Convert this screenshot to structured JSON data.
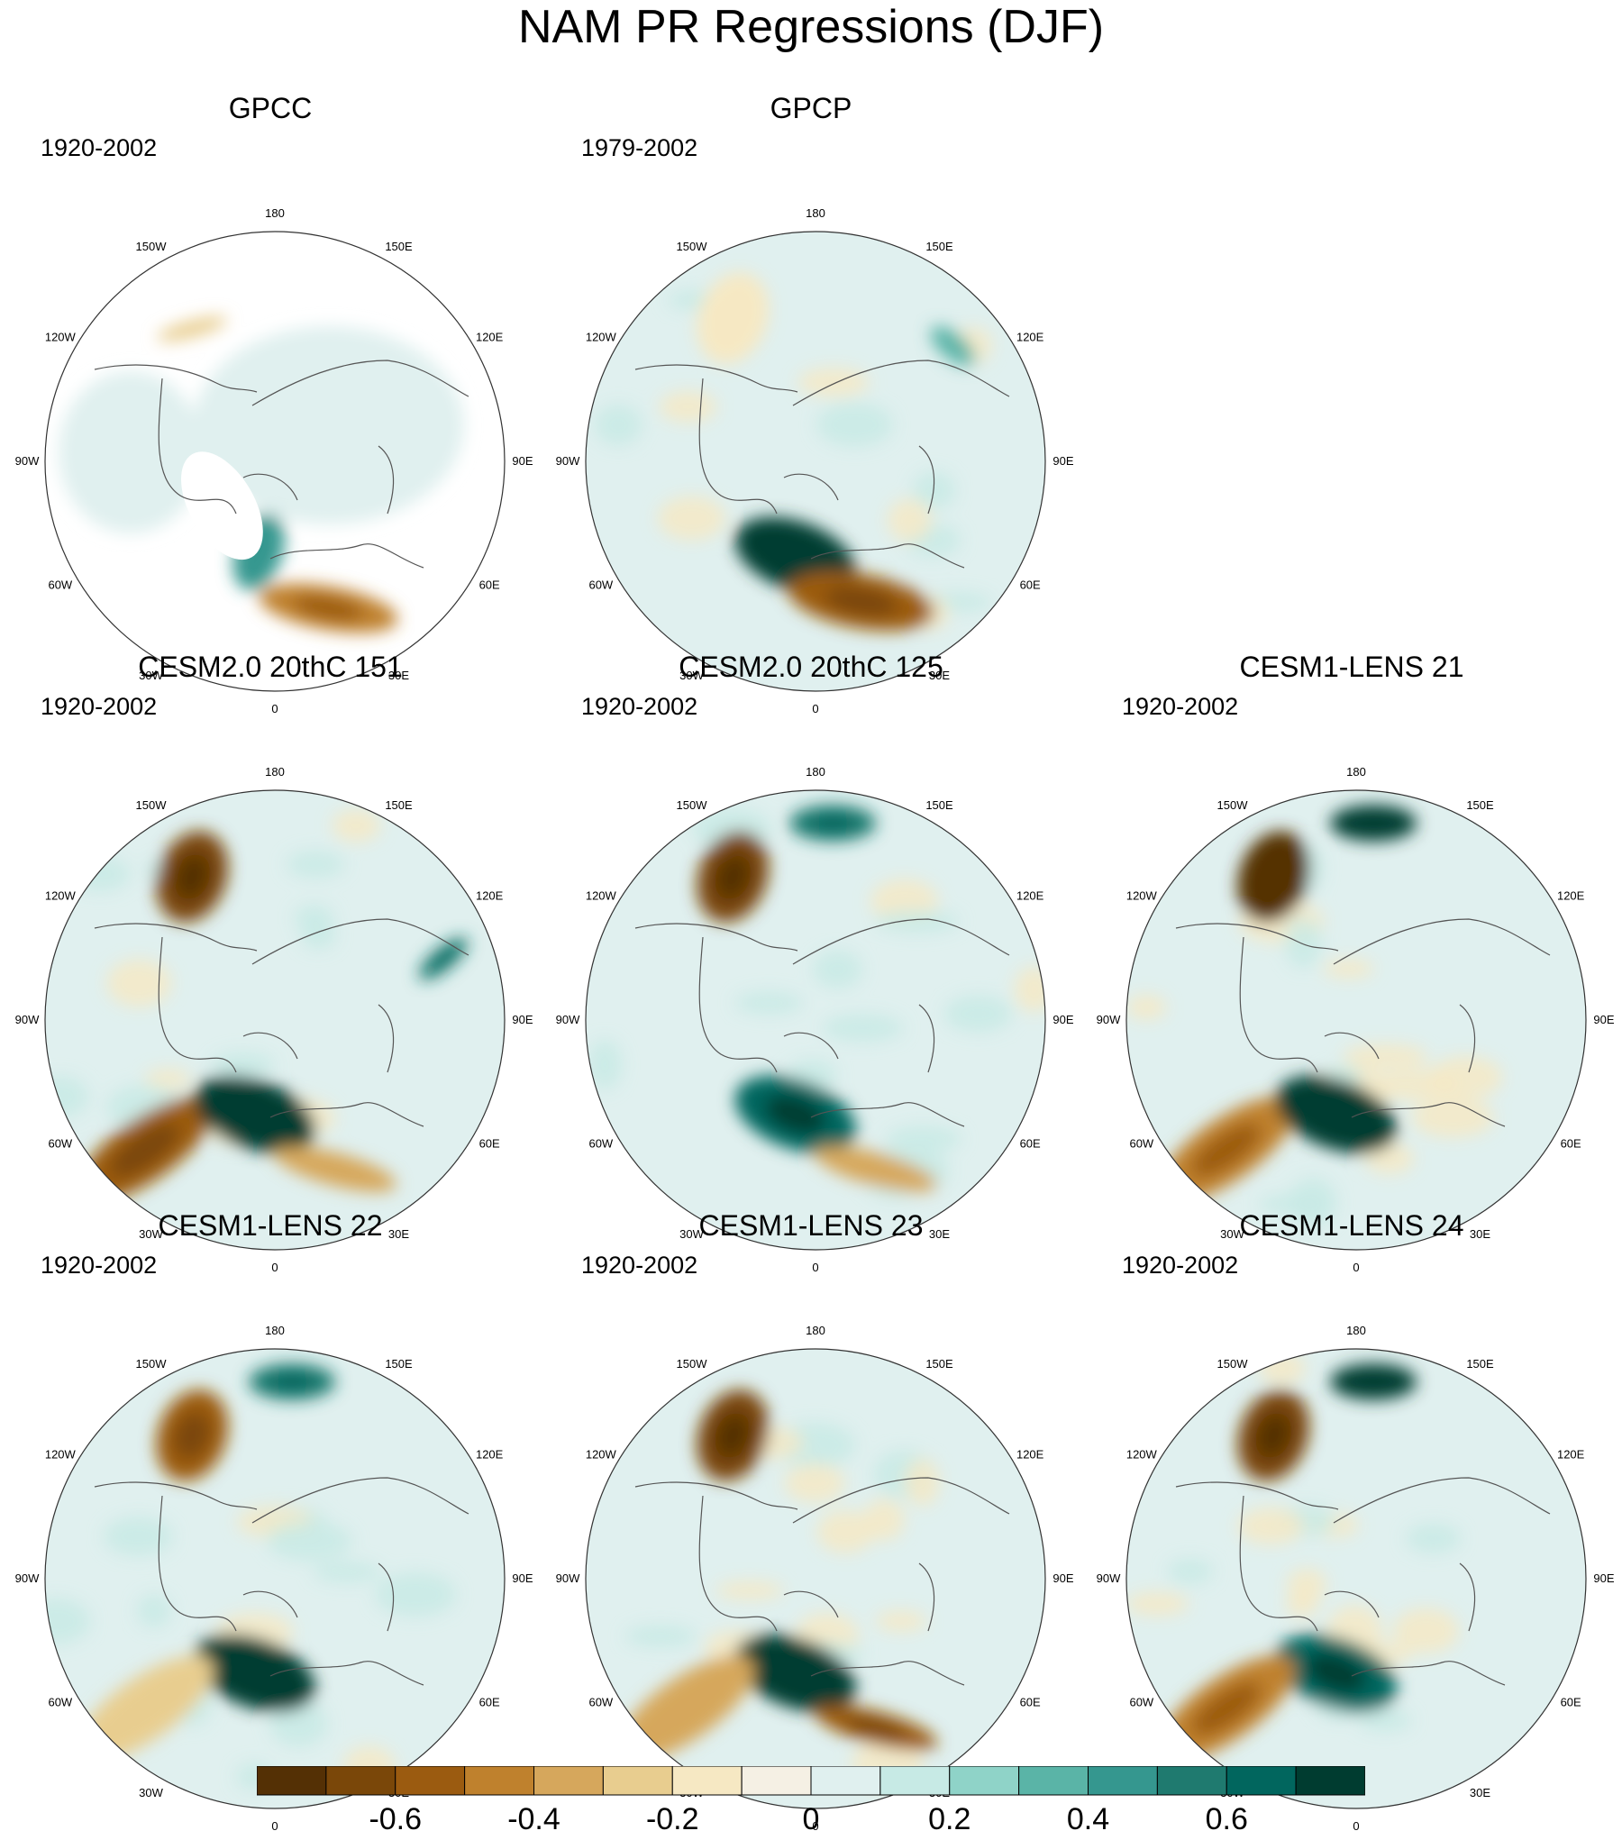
{
  "figure_title": "NAM PR Regressions (DJF)",
  "lon_labels": [
    "180",
    "150E",
    "120E",
    "90E",
    "60E",
    "30E",
    "0",
    "30W",
    "60W",
    "90W",
    "120W",
    "150W"
  ],
  "panels": [
    {
      "title": "GPCC",
      "period": "1920-2002",
      "data_coverage": "land-only",
      "features": [
        {
          "region": "Mediterranean / Iberia",
          "value": -0.5
        },
        {
          "region": "NW Europe",
          "value": 0.4
        },
        {
          "region": "Alaska south coast",
          "value": -0.3
        },
        {
          "region": "Greenland",
          "value": null
        }
      ]
    },
    {
      "title": "GPCP",
      "period": "1979-2002",
      "data_coverage": "global",
      "features": [
        {
          "region": "N Atlantic / N Europe",
          "value": 0.7
        },
        {
          "region": "Mediterranean / N Africa",
          "value": -0.6
        },
        {
          "region": "NE Pacific",
          "value": -0.2
        },
        {
          "region": "NW Pacific",
          "value": 0.3
        }
      ]
    },
    {
      "title": "CESM2.0 20thC 151",
      "period": "1920-2002",
      "data_coverage": "global",
      "features": [
        {
          "region": "NE Pacific",
          "value": -0.7
        },
        {
          "region": "Subtropical N Atlantic",
          "value": -0.6
        },
        {
          "region": "N Atlantic / N Europe",
          "value": 0.7
        },
        {
          "region": "Mediterranean",
          "value": -0.4
        },
        {
          "region": "E Asia",
          "value": 0.5
        }
      ]
    },
    {
      "title": "CESM2.0 20thC 125",
      "period": "1920-2002",
      "data_coverage": "global",
      "features": [
        {
          "region": "NE Pacific",
          "value": -0.7
        },
        {
          "region": "N Pacific (Aleutians)",
          "value": 0.5
        },
        {
          "region": "N Atlantic / N Europe",
          "value": 0.6
        },
        {
          "region": "Mediterranean",
          "value": -0.4
        }
      ]
    },
    {
      "title": "CESM1-LENS 21",
      "period": "1920-2002",
      "data_coverage": "global",
      "features": [
        {
          "region": "NE Pacific",
          "value": -0.8
        },
        {
          "region": "N Pacific (Aleutians)",
          "value": 0.7
        },
        {
          "region": "Subtropical N Atlantic",
          "value": -0.5
        },
        {
          "region": "N Atlantic / N Europe",
          "value": 0.7
        }
      ]
    },
    {
      "title": "CESM1-LENS 22",
      "period": "1920-2002",
      "data_coverage": "global",
      "features": [
        {
          "region": "NE Pacific",
          "value": -0.6
        },
        {
          "region": "N Pacific (Aleutians)",
          "value": 0.5
        },
        {
          "region": "N Atlantic / N Europe",
          "value": 0.7
        },
        {
          "region": "Subtropical N Atlantic",
          "value": -0.3
        }
      ]
    },
    {
      "title": "CESM1-LENS 23",
      "period": "1920-2002",
      "data_coverage": "global",
      "features": [
        {
          "region": "NE Pacific",
          "value": -0.7
        },
        {
          "region": "N Atlantic / N Europe",
          "value": 0.7
        },
        {
          "region": "Mediterranean",
          "value": -0.6
        },
        {
          "region": "Subtropical N Atlantic",
          "value": -0.4
        }
      ]
    },
    {
      "title": "CESM1-LENS 24",
      "period": "1920-2002",
      "data_coverage": "global",
      "features": [
        {
          "region": "NE Pacific",
          "value": -0.7
        },
        {
          "region": "N Pacific (Aleutians)",
          "value": 0.7
        },
        {
          "region": "N Atlantic / N Europe",
          "value": 0.6
        },
        {
          "region": "Subtropical N Atlantic",
          "value": -0.5
        }
      ]
    }
  ],
  "chart_data": {
    "type": "heatmap",
    "title": "NAM PR Regressions (DJF)",
    "projection": "polar stereographic, Northern Hemisphere",
    "colorbar": {
      "levels": [
        -0.7,
        -0.6,
        -0.5,
        -0.4,
        -0.3,
        -0.2,
        -0.1,
        0,
        0.1,
        0.2,
        0.3,
        0.4,
        0.5,
        0.6,
        0.7
      ],
      "colors": [
        "#543005",
        "#7a4709",
        "#9b5b10",
        "#bf812d",
        "#d6a75c",
        "#e8cd8f",
        "#f6e8c3",
        "#f5f0e4",
        "#e0f0ef",
        "#c7eae5",
        "#8fd3c8",
        "#5ab4a7",
        "#35978f",
        "#1f7a6f",
        "#01665e",
        "#003c30"
      ],
      "tick_values": [
        -0.6,
        -0.4,
        -0.2,
        0,
        0.2,
        0.4,
        0.6
      ],
      "tick_labels": [
        "-0.6",
        "-0.4",
        "-0.2",
        "0",
        "0.2",
        "0.4",
        "0.6"
      ]
    }
  }
}
